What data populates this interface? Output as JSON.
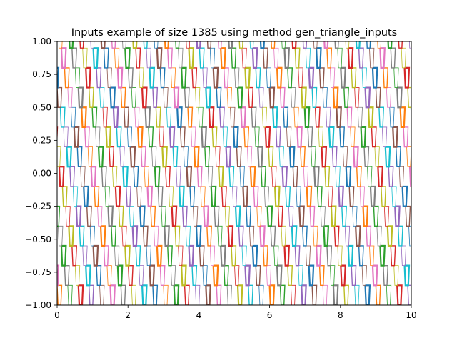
{
  "chart_data": {
    "type": "line",
    "title": "Inputs example of size 1385 using method gen_triangle_inputs",
    "xlabel": "",
    "ylabel": "",
    "xlim": [
      0,
      10
    ],
    "ylim": [
      -1.0,
      1.0
    ],
    "x_ticks": [
      "0",
      "2",
      "4",
      "6",
      "8",
      "10"
    ],
    "x_tick_values": [
      0,
      2,
      4,
      6,
      8,
      10
    ],
    "y_ticks": [
      "−1.00",
      "−0.75",
      "−0.50",
      "−0.25",
      "0.00",
      "0.25",
      "0.50",
      "0.75",
      "1.00"
    ],
    "y_tick_values": [
      -1.0,
      -0.75,
      -0.5,
      -0.25,
      0.0,
      0.25,
      0.5,
      0.75,
      1.0
    ],
    "grid": false,
    "legend": "none",
    "palette": [
      "#1f77b4",
      "#ff7f0e",
      "#2ca02c",
      "#d62728",
      "#9467bd",
      "#8c564b",
      "#e377c2",
      "#7f7f7f",
      "#bcbd22",
      "#17becf"
    ],
    "series_count": 1385,
    "trapezoid": {
      "levels": [
        -1.0,
        -0.85,
        -0.7,
        -0.55,
        -0.4,
        -0.25,
        -0.1,
        0.05,
        0.2,
        0.35,
        0.5,
        0.65,
        0.8,
        0.95
      ],
      "period": 0.3,
      "top_width": 0.13,
      "bottom_width": 0.08,
      "plateau_height": 0.15
    }
  }
}
